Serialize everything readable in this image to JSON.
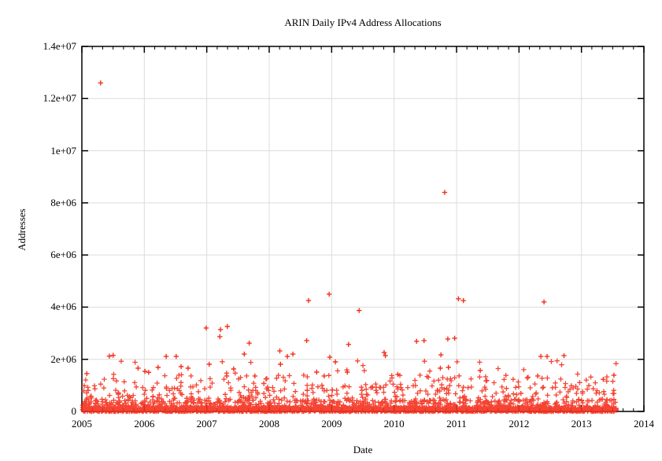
{
  "chart_data": {
    "type": "scatter",
    "title": "ARIN Daily IPv4 Address Allocations",
    "xlabel": "Date",
    "ylabel": "Addresses",
    "xlim": [
      2005,
      2014
    ],
    "ylim": [
      0,
      14000000
    ],
    "x_tick_values": [
      2005,
      2006,
      2007,
      2008,
      2009,
      2010,
      2011,
      2012,
      2013,
      2014
    ],
    "x_tick_labels": [
      "2005",
      "2006",
      "2007",
      "2008",
      "2009",
      "2010",
      "2011",
      "2012",
      "2013",
      "2014"
    ],
    "y_tick_values": [
      0,
      2000000,
      4000000,
      6000000,
      8000000,
      10000000,
      12000000,
      14000000
    ],
    "y_tick_labels": [
      "0",
      "2e+06",
      "4e+06",
      "6e+06",
      "8e+06",
      "1e+07",
      "1.2e+07",
      "1.4e+07"
    ],
    "grid": true,
    "minor_x_ticks_per_year": 6,
    "legend": "none",
    "marker": "plus",
    "colors": {
      "marker": "#f4301d",
      "grid": "#dcdcdc",
      "frame": "#000000",
      "background": "#ffffff",
      "text": "#000000"
    },
    "notable_points": [
      [
        2005.3,
        12600000
      ],
      [
        2010.81,
        8400000
      ],
      [
        2008.63,
        4250000
      ],
      [
        2008.96,
        4500000
      ],
      [
        2009.44,
        3870000
      ],
      [
        2011.03,
        4320000
      ],
      [
        2011.11,
        4250000
      ],
      [
        2012.4,
        4200000
      ],
      [
        2006.99,
        3200000
      ],
      [
        2007.22,
        3140000
      ],
      [
        2007.33,
        3260000
      ],
      [
        2007.21,
        2870000
      ],
      [
        2007.68,
        2620000
      ],
      [
        2008.6,
        2720000
      ],
      [
        2009.27,
        2570000
      ],
      [
        2010.36,
        2690000
      ],
      [
        2010.48,
        2720000
      ],
      [
        2010.86,
        2780000
      ],
      [
        2010.97,
        2810000
      ],
      [
        2005.44,
        2120000
      ],
      [
        2005.5,
        2150000
      ],
      [
        2006.35,
        2110000
      ],
      [
        2006.51,
        2110000
      ],
      [
        2007.6,
        2200000
      ],
      [
        2008.17,
        2320000
      ],
      [
        2008.29,
        2110000
      ],
      [
        2008.38,
        2200000
      ],
      [
        2008.97,
        2080000
      ],
      [
        2009.84,
        2260000
      ],
      [
        2009.86,
        2140000
      ],
      [
        2010.75,
        2170000
      ],
      [
        2012.35,
        2110000
      ],
      [
        2012.45,
        2110000
      ],
      [
        2012.72,
        2140000
      ],
      [
        2005.08,
        1450000
      ],
      [
        2005.9,
        1660000
      ],
      [
        2006.01,
        1540000
      ],
      [
        2006.07,
        1500000
      ],
      [
        2006.22,
        1690000
      ],
      [
        2006.59,
        1720000
      ],
      [
        2006.7,
        1660000
      ],
      [
        2007.04,
        1810000
      ],
      [
        2007.43,
        1630000
      ],
      [
        2007.32,
        1360000
      ],
      [
        2007.77,
        1360000
      ],
      [
        2008.18,
        1810000
      ],
      [
        2008.76,
        1510000
      ],
      [
        2008.88,
        1360000
      ],
      [
        2009.06,
        1900000
      ],
      [
        2009.25,
        1510000
      ],
      [
        2010.06,
        1420000
      ],
      [
        2010.74,
        1660000
      ],
      [
        2010.87,
        1690000
      ],
      [
        2011.38,
        1570000
      ],
      [
        2012.3,
        1360000
      ],
      [
        2013.35,
        1230000
      ],
      [
        2013.52,
        1390000
      ]
    ],
    "dense_cloud": {
      "description": "Several thousand daily allocation points forming a dense band near zero, from Jan 2005 through mid 2013",
      "x_start": 2005.01,
      "x_end": 2013.56,
      "seed": 1337,
      "bands": [
        {
          "count": 2600,
          "y_min": 0,
          "y_max": 150000,
          "bias": 1.0
        },
        {
          "count": 680,
          "y_min": 80000,
          "y_max": 450000,
          "bias": 1.4
        },
        {
          "count": 270,
          "y_min": 400000,
          "y_max": 950000,
          "bias": 1.2
        },
        {
          "count": 115,
          "y_min": 900000,
          "y_max": 1400000,
          "bias": 1.1
        },
        {
          "count": 24,
          "y_min": 1400000,
          "y_max": 1950000,
          "bias": 1.0
        }
      ]
    }
  }
}
